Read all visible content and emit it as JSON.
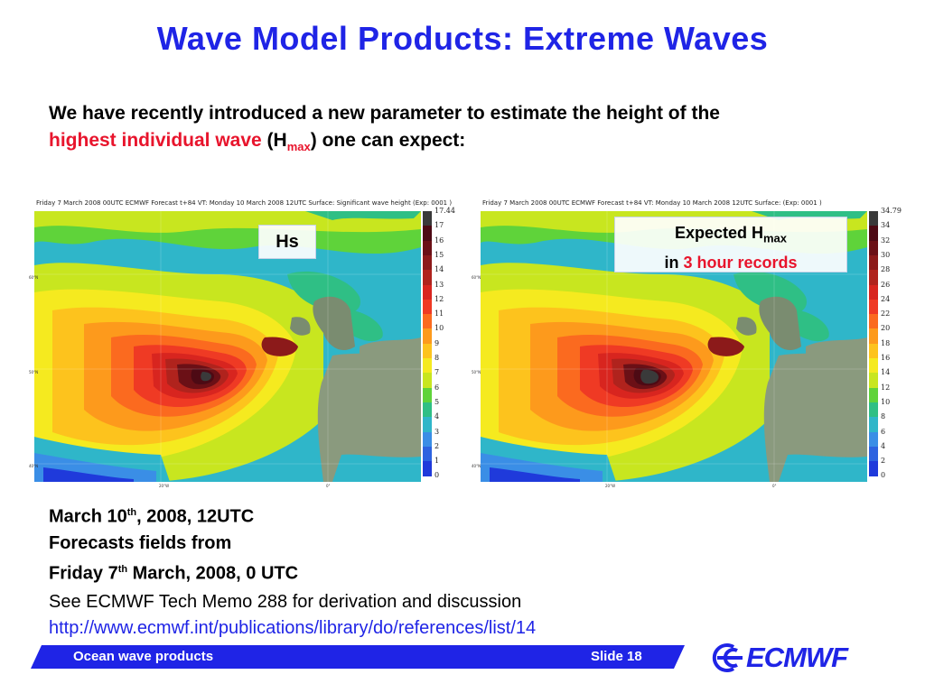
{
  "slide": {
    "title": "Wave Model Products: Extreme Waves",
    "intro_line1": "We have recently introduced a new parameter to estimate the height of  the",
    "intro_highlight": "highest individual wave",
    "intro_paren_open": "  (H",
    "intro_sub": "max",
    "intro_end": ") one can expect:"
  },
  "panels": {
    "left": {
      "caption": "Friday 7 March 2008 00UTC ECMWF  Forecast t+84 VT: Monday 10 March 2008 12UTC Surface: Significant wave height (Exp: 0001  )",
      "label": "Hs",
      "legend": [
        "17.44",
        "17",
        "16",
        "15",
        "14",
        "13",
        "12",
        "11",
        "10",
        "9",
        "8",
        "7",
        "6",
        "5",
        "4",
        "3",
        "2",
        "1",
        "0"
      ]
    },
    "right": {
      "caption": "Friday 7 March 2008 00UTC ECMWF  Forecast t+84 VT: Monday 10 March 2008 12UTC Surface:  (Exp: 0001  )",
      "label_line1": "Expected H",
      "label_sub": "max",
      "label_line2_prefix": "in ",
      "label_line2_highlight": "3 hour records",
      "legend": [
        "34.79",
        "34",
        "32",
        "30",
        "28",
        "26",
        "24",
        "22",
        "20",
        "18",
        "16",
        "14",
        "12",
        "10",
        "8",
        "6",
        "4",
        "2",
        "0"
      ]
    },
    "lat_labels": [
      "60°N",
      "50°N",
      "40°N"
    ],
    "lon_labels": [
      "20°W",
      "0°"
    ]
  },
  "legend_colors": [
    "#3a3a3a",
    "#4d0a14",
    "#6b1016",
    "#8c1a1a",
    "#b0231d",
    "#d8251f",
    "#ef3a24",
    "#fb6a1f",
    "#fd9a1c",
    "#fdc31d",
    "#f5ea1f",
    "#c8e61f",
    "#5fd33a",
    "#2fbf85",
    "#2fb6c9",
    "#3a8ee6",
    "#2d63e0",
    "#1f3adb"
  ],
  "facts": {
    "line1_a": "March 10",
    "line1_sup": "th",
    "line1_b": ", 2008, 12UTC",
    "line2": "Forecasts fields from",
    "line3_a": "Friday 7",
    "line3_sup": "th",
    "line3_b": " March, 2008, 0 UTC"
  },
  "memo": {
    "text": "See ECMWF Tech Memo 288 for derivation and discussion",
    "link": "http://www.ecmwf.int/publications/library/do/references/list/14"
  },
  "footer": {
    "left": "Ocean wave products",
    "right": "Slide 18",
    "logo": "ECMWF"
  },
  "colors": {
    "title_blue": "#1f24e6",
    "highlight_red": "#e8142c"
  }
}
